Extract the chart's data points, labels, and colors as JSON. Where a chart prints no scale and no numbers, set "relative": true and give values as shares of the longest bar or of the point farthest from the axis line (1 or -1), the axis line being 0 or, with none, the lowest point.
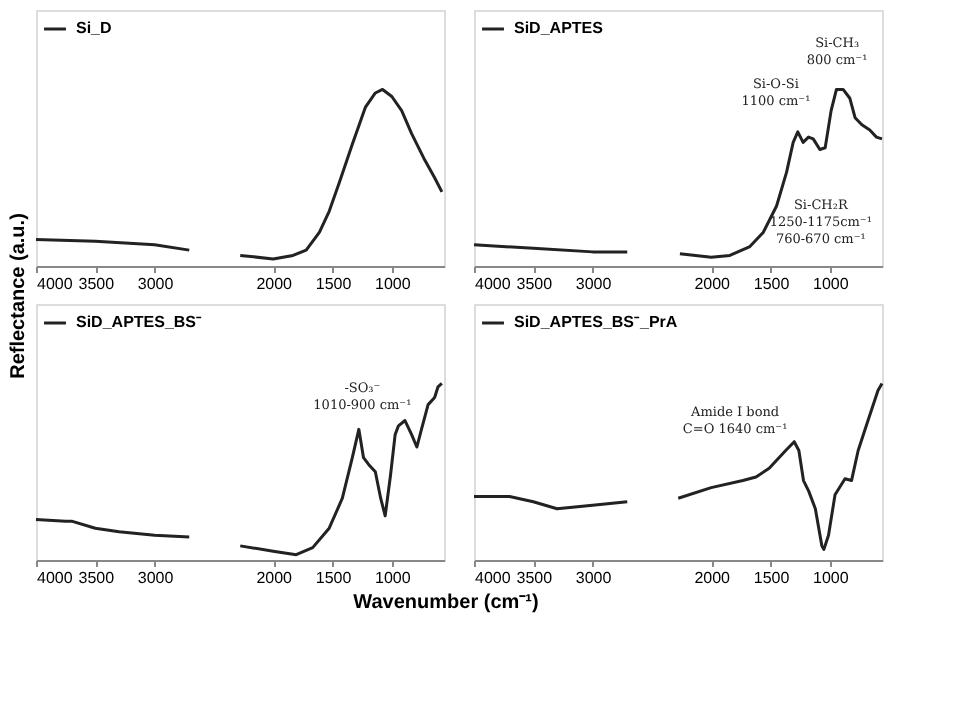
{
  "chart_data": [
    {
      "type": "line",
      "relative": true,
      "ylabel": "Reflectance (a.u.)",
      "legend": "top left",
      "xlim": [
        4000,
        560
      ],
      "xticks": [
        4000,
        3500,
        3000,
        2000,
        1500,
        1000
      ],
      "grid": false,
      "series": [
        {
          "name": "Si_D",
          "color": "#222222",
          "x": [
            4000,
            3500,
            3000,
            2708
          ],
          "values": [
            0.15,
            0.14,
            0.12,
            0.09
          ]
        },
        {
          "color": "#222222",
          "x": [
            2278,
            2000,
            1833,
            1722,
            1611,
            1528,
            1444,
            1333,
            1222,
            1139,
            1078,
            1000,
            917,
            833,
            722,
            639,
            578
          ],
          "values": [
            0.06,
            0.04,
            0.06,
            0.09,
            0.19,
            0.31,
            0.47,
            0.69,
            0.9,
            0.98,
            1,
            0.96,
            0.88,
            0.75,
            0.6,
            0.5,
            0.42
          ]
        }
      ]
    },
    {
      "type": "line",
      "relative": true,
      "legend": "top left",
      "xlim": [
        4000,
        560
      ],
      "xticks": [
        4000,
        3500,
        3000,
        2000,
        1500,
        1000
      ],
      "grid": false,
      "series": [
        {
          "name": "SiD_APTES",
          "color": "#222222",
          "x": [
            4000,
            3500,
            3000,
            2708
          ],
          "values": [
            0.12,
            0.1,
            0.08,
            0.08
          ]
        },
        {
          "color": "#222222",
          "x": [
            2264,
            2000,
            1843,
            1674,
            1562,
            1449,
            1365,
            1309,
            1270,
            1225,
            1180,
            1140,
            1084,
            1039,
            989,
            944,
            888,
            831,
            787,
            730,
            663,
            607,
            560
          ],
          "values": [
            0.07,
            0.05,
            0.06,
            0.11,
            0.19,
            0.34,
            0.53,
            0.7,
            0.76,
            0.7,
            0.73,
            0.72,
            0.66,
            0.67,
            0.88,
            1,
            1,
            0.95,
            0.84,
            0.8,
            0.77,
            0.73,
            0.72
          ]
        }
      ],
      "annotations": [
        "Si-O-Si\n1100 cm⁻¹",
        "Si-CH₃\n800 cm⁻¹",
        "Si-CH₂R\n1250-1175cm⁻¹\n760-670 cm⁻¹"
      ]
    },
    {
      "type": "line",
      "relative": true,
      "legend": "top left",
      "xlim": [
        4000,
        560
      ],
      "xticks": [
        4000,
        3500,
        3000,
        2000,
        1500,
        1000
      ],
      "grid": false,
      "series": [
        {
          "name": "SiD_APTES_BS⁻",
          "color": "#222222",
          "x": [
            4000,
            3750,
            3700,
            3500,
            3300,
            3000,
            2708
          ],
          "values": [
            0.23,
            0.22,
            0.22,
            0.18,
            0.16,
            0.14,
            0.13
          ]
        },
        {
          "color": "#222222",
          "x": [
            2278,
            2000,
            1806,
            1667,
            1528,
            1417,
            1333,
            1278,
            1239,
            1194,
            1139,
            1094,
            1056,
            1011,
            972,
            944,
            889,
            833,
            789,
            750,
            694,
            639,
            611,
            578
          ],
          "values": [
            0.08,
            0.05,
            0.03,
            0.07,
            0.18,
            0.35,
            0.58,
            0.74,
            0.58,
            0.54,
            0.5,
            0.35,
            0.25,
            0.48,
            0.71,
            0.76,
            0.79,
            0.71,
            0.64,
            0.74,
            0.88,
            0.92,
            0.98,
            1
          ]
        }
      ],
      "annotations": [
        "-SO₃⁻\n1010-900 cm⁻¹"
      ]
    },
    {
      "type": "line",
      "relative": true,
      "xlabel": "Wavenumber (cm⁻¹)",
      "legend": "top left",
      "xlim": [
        4000,
        560
      ],
      "xticks": [
        4000,
        3500,
        3000,
        2000,
        1500,
        1000
      ],
      "grid": false,
      "series": [
        {
          "name": "SiD_APTES_BS⁻_PrA",
          "color": "#222222",
          "x": [
            4000,
            3700,
            3500,
            3300,
            3000,
            2708
          ],
          "values": [
            0.36,
            0.36,
            0.33,
            0.29,
            0.31,
            0.33
          ]
        },
        {
          "color": "#222222",
          "x": [
            2278,
            2000,
            1733,
            1622,
            1511,
            1372,
            1300,
            1261,
            1222,
            1178,
            1122,
            1067,
            1050,
            1011,
            956,
            872,
            817,
            761,
            678,
            594,
            560
          ],
          "values": [
            0.35,
            0.41,
            0.45,
            0.47,
            0.52,
            0.62,
            0.67,
            0.62,
            0.45,
            0.39,
            0.29,
            0.08,
            0.06,
            0.14,
            0.37,
            0.46,
            0.45,
            0.62,
            0.79,
            0.96,
            1
          ]
        }
      ],
      "annotations": [
        "Amide I bond\nC=O 1640 cm⁻¹"
      ]
    }
  ]
}
